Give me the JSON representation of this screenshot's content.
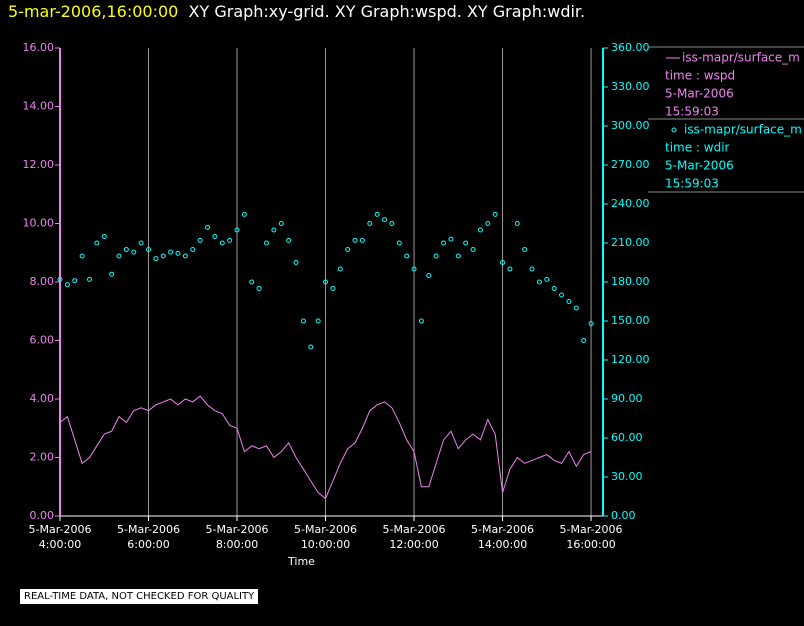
{
  "header": {
    "timestamp": "5-mar-2006,16:00:00",
    "graphs": "XY Graph:xy-grid.  XY Graph:wspd.  XY Graph:wdir."
  },
  "footer": "REAL-TIME DATA, NOT CHECKED FOR QUALITY",
  "chart_data": {
    "type": "line",
    "x_label": "Time",
    "grid": true,
    "xlim": [
      4,
      16.27
    ],
    "xticks": [
      {
        "value": 4,
        "label": "5-Mar-2006 4:00:00"
      },
      {
        "value": 6,
        "label": "5-Mar-2006 6:00:00"
      },
      {
        "value": 8,
        "label": "5-Mar-2006 8:00:00"
      },
      {
        "value": 10,
        "label": "5-Mar-2006 10:00:00"
      },
      {
        "value": 12,
        "label": "5-Mar-2006 12:00:00"
      },
      {
        "value": 14,
        "label": "5-Mar-2006 14:00:00"
      },
      {
        "value": 16,
        "label": "5-Mar-2006 16:00:00"
      }
    ],
    "ylim": [
      0,
      16
    ],
    "yticks": [
      {
        "value": 0,
        "label": "0.00"
      },
      {
        "value": 2,
        "label": "2.00"
      },
      {
        "value": 4,
        "label": "4.00"
      },
      {
        "value": 6,
        "label": "6.00"
      },
      {
        "value": 8,
        "label": "8.00"
      },
      {
        "value": 10,
        "label": "10.00"
      },
      {
        "value": 12,
        "label": "12.00"
      },
      {
        "value": 14,
        "label": "14.00"
      },
      {
        "value": 16,
        "label": "16.00"
      }
    ],
    "y2lim": [
      0,
      360
    ],
    "y2ticks": [
      {
        "value": 0,
        "label": "0.00"
      },
      {
        "value": 30,
        "label": "30.00"
      },
      {
        "value": 60,
        "label": "60.00"
      },
      {
        "value": 90,
        "label": "90.00"
      },
      {
        "value": 120,
        "label": "120.00"
      },
      {
        "value": 150,
        "label": "150.00"
      },
      {
        "value": 180,
        "label": "180.00"
      },
      {
        "value": 210,
        "label": "210.00"
      },
      {
        "value": 240,
        "label": "240.00"
      },
      {
        "value": 270,
        "label": "270.00"
      },
      {
        "value": 300,
        "label": "300.00"
      },
      {
        "value": 330,
        "label": "330.00"
      },
      {
        "value": 360,
        "label": "360.00"
      }
    ],
    "x": [
      4,
      4.1667,
      4.3333,
      4.5,
      4.6667,
      4.8333,
      5,
      5.1667,
      5.3333,
      5.5,
      5.6667,
      5.8333,
      6,
      6.1667,
      6.3333,
      6.5,
      6.6667,
      6.8333,
      7,
      7.1667,
      7.3333,
      7.5,
      7.6667,
      7.8333,
      8,
      8.1667,
      8.3333,
      8.5,
      8.6667,
      8.8333,
      9,
      9.1667,
      9.3333,
      9.5,
      9.6667,
      9.8333,
      10,
      10.1667,
      10.3333,
      10.5,
      10.6667,
      10.8333,
      11,
      11.1667,
      11.3333,
      11.5,
      11.6667,
      11.8333,
      12,
      12.1667,
      12.3333,
      12.5,
      12.6667,
      12.8333,
      13,
      13.1667,
      13.3333,
      13.5,
      13.6667,
      13.8333,
      14,
      14.1667,
      14.3333,
      14.5,
      14.6667,
      14.8333,
      15,
      15.1667,
      15.3333,
      15.5,
      15.6667,
      15.8333,
      16
    ],
    "series": [
      {
        "name": "iss-mapr/surface_m",
        "type": "line",
        "color": "#ee82ee",
        "legend_lines": [
          "time : wspd",
          "5-Mar-2006",
          "15:59:03"
        ],
        "values": [
          3.2,
          3.4,
          2.6,
          1.8,
          2.0,
          2.4,
          2.8,
          2.9,
          3.4,
          3.2,
          3.6,
          3.7,
          3.6,
          3.8,
          3.9,
          4.0,
          3.8,
          4.0,
          3.9,
          4.1,
          3.8,
          3.6,
          3.5,
          3.1,
          3.0,
          2.2,
          2.4,
          2.3,
          2.4,
          2.0,
          2.2,
          2.5,
          2.0,
          1.6,
          1.2,
          0.8,
          0.6,
          1.2,
          1.8,
          2.3,
          2.5,
          3.0,
          3.6,
          3.8,
          3.9,
          3.7,
          3.2,
          2.6,
          2.2,
          1.0,
          1.0,
          1.8,
          2.6,
          2.9,
          2.3,
          2.6,
          2.8,
          2.6,
          3.3,
          2.8,
          0.8,
          1.6,
          2.0,
          1.8,
          1.9,
          2.0,
          2.1,
          1.9,
          1.8,
          2.2,
          1.7,
          2.1,
          2.2
        ]
      },
      {
        "name": "iss-mapr/surface_m",
        "type": "scatter",
        "axis": "y2",
        "color": "#00ffff",
        "legend_lines": [
          "time : wdir",
          "5-Mar-2006",
          "15:59:03"
        ],
        "values": [
          182,
          178,
          181,
          200,
          182,
          210,
          215,
          186,
          200,
          205,
          203,
          210,
          205,
          198,
          200,
          203,
          202,
          200,
          205,
          212,
          222,
          215,
          210,
          212,
          220,
          232,
          180,
          175,
          210,
          220,
          225,
          212,
          195,
          150,
          130,
          150,
          180,
          175,
          190,
          205,
          212,
          212,
          225,
          232,
          228,
          225,
          210,
          200,
          190,
          150,
          185,
          200,
          210,
          213,
          200,
          210,
          205,
          220,
          225,
          232,
          195,
          190,
          225,
          205,
          190,
          180,
          182,
          175,
          170,
          165,
          160,
          135,
          148
        ]
      }
    ]
  }
}
